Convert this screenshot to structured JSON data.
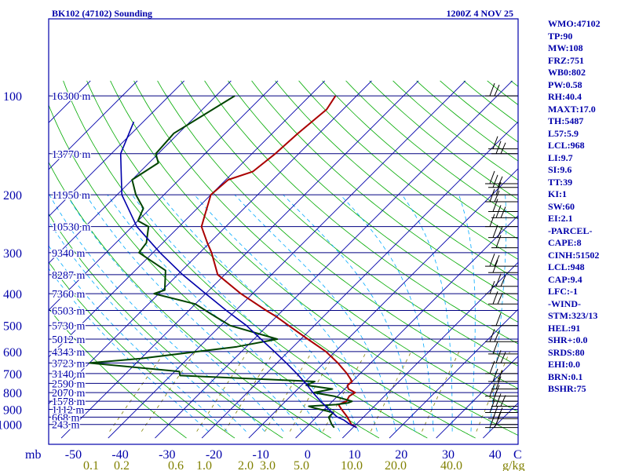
{
  "header": {
    "station": "BK102 (47102) Sounding",
    "time": "1200Z  4 NOV 25"
  },
  "indices": [
    "WMO:47102",
    "TP:90",
    "MW:108",
    "FRZ:751",
    "WB0:802",
    "PW:0.58",
    "RH:40.4",
    "MAXT:17.0",
    "TH:5487",
    "L57:5.9",
    "LCL:968",
    "LI:9.7",
    "SI:9.6",
    "TT:39",
    "KI:1",
    "SW:60",
    "EI:2.1",
    "-PARCEL-",
    "CAPE:8",
    "CINH:51502",
    "LCL:948",
    "CAP:9.4",
    "LFC:-1",
    "-WIND-",
    "STM:323/13",
    "HEL:91",
    "SHR+:0.0",
    "SRDS:80",
    "EHI:0.0",
    "BRN:0.1",
    "BSHR:75"
  ],
  "colors": {
    "frame": "#0000aa",
    "isobar": "#000080",
    "isotherm": "#0000aa",
    "dry_adiabat": "#00aa00",
    "mixing_ratio": "#808000",
    "moist_adiabat": "#00aaff",
    "temperature": "#aa0000",
    "dewpoint": "#004400",
    "parcel": "#0000aa",
    "wind": "#000000"
  },
  "chart_data": {
    "type": "line",
    "subtype": "skew-T log-p sounding",
    "pressure_axis": {
      "unit": "mb",
      "scale": "log",
      "ticks": [
        100,
        200,
        300,
        400,
        500,
        600,
        700,
        800,
        900,
        1000
      ]
    },
    "temperature_axis": {
      "ticks": [
        -50,
        -40,
        -30,
        -20,
        -10,
        0,
        10,
        20,
        30,
        40
      ],
      "label_end": "C"
    },
    "mixing_ratio_axis": {
      "ticks": [
        "0.1",
        "0.2",
        "0.6",
        "1.0",
        "2.0",
        "3.0",
        "5.0",
        "10.0",
        "20.0",
        "40.0"
      ],
      "unit": "g/kg"
    },
    "height_labels": [
      {
        "p": 100,
        "label": "16300 m"
      },
      {
        "p": 150,
        "label": "13770 m"
      },
      {
        "p": 200,
        "label": "11950 m"
      },
      {
        "p": 250,
        "label": "10530 m"
      },
      {
        "p": 300,
        "label": "9340 m"
      },
      {
        "p": 350,
        "label": "8287 m"
      },
      {
        "p": 400,
        "label": "7360 m"
      },
      {
        "p": 450,
        "label": "6503 m"
      },
      {
        "p": 500,
        "label": "5730 m"
      },
      {
        "p": 550,
        "label": "5012 m"
      },
      {
        "p": 600,
        "label": "4343 m"
      },
      {
        "p": 650,
        "label": "3723 m"
      },
      {
        "p": 700,
        "label": "3140 m"
      },
      {
        "p": 750,
        "label": "2590 m"
      },
      {
        "p": 800,
        "label": "2070 m"
      },
      {
        "p": 850,
        "label": "1578 m"
      },
      {
        "p": 900,
        "label": "1112 m"
      },
      {
        "p": 950,
        "label": "668 m"
      },
      {
        "p": 1000,
        "label": "243 m"
      }
    ],
    "series": [
      {
        "key": "temperature",
        "points": [
          [
            1022,
            10.8
          ],
          [
            1000,
            9.0
          ],
          [
            950,
            6.6
          ],
          [
            900,
            3.7
          ],
          [
            870,
            2.0
          ],
          [
            850,
            3.0
          ],
          [
            820,
            2.5
          ],
          [
            800,
            3.0
          ],
          [
            780,
            0.8
          ],
          [
            760,
            -0.2
          ],
          [
            740,
            0.0
          ],
          [
            700,
            -2.8
          ],
          [
            650,
            -7.0
          ],
          [
            600,
            -12.0
          ],
          [
            550,
            -18.5
          ],
          [
            500,
            -25.5
          ],
          [
            470,
            -30.0
          ],
          [
            450,
            -33.5
          ],
          [
            400,
            -42.5
          ],
          [
            350,
            -51.5
          ],
          [
            300,
            -57.5
          ],
          [
            280,
            -60.5
          ],
          [
            250,
            -65.2
          ],
          [
            230,
            -67.0
          ],
          [
            200,
            -70.0
          ],
          [
            180,
            -69.5
          ],
          [
            170,
            -66.0
          ],
          [
            150,
            -65.0
          ],
          [
            130,
            -64.5
          ],
          [
            110,
            -63.5
          ],
          [
            100,
            -64.5
          ]
        ]
      },
      {
        "key": "dewpoint",
        "points": [
          [
            1022,
            6.0
          ],
          [
            1000,
            4.8
          ],
          [
            950,
            2.6
          ],
          [
            920,
            2.6
          ],
          [
            890,
            -2.6
          ],
          [
            880,
            -4.0
          ],
          [
            870,
            1.5
          ],
          [
            860,
            3.7
          ],
          [
            850,
            4.2
          ],
          [
            820,
            -0.8
          ],
          [
            800,
            -5.8
          ],
          [
            780,
            -2.6
          ],
          [
            760,
            -9.0
          ],
          [
            740,
            -8.0
          ],
          [
            710,
            -38.0
          ],
          [
            690,
            -39.0
          ],
          [
            650,
            -60.0
          ],
          [
            630,
            -50.0
          ],
          [
            580,
            -32.0
          ],
          [
            550,
            -25.0
          ],
          [
            500,
            -38.0
          ],
          [
            470,
            -43.0
          ],
          [
            430,
            -50.0
          ],
          [
            400,
            -61.0
          ],
          [
            390,
            -59.5
          ],
          [
            340,
            -63.5
          ],
          [
            300,
            -73.0
          ],
          [
            280,
            -73.5
          ],
          [
            250,
            -76.5
          ],
          [
            240,
            -80.0
          ],
          [
            220,
            -81.5
          ],
          [
            200,
            -86.0
          ],
          [
            180,
            -90.0
          ],
          [
            160,
            -88.0
          ],
          [
            150,
            -90.5
          ],
          [
            130,
            -91.0
          ],
          [
            100,
            -86.0
          ]
        ]
      },
      {
        "key": "parcel",
        "points": [
          [
            1022,
            10.8
          ],
          [
            1000,
            8.7
          ],
          [
            970,
            6.5
          ],
          [
            948,
            4.3
          ],
          [
            900,
            1.0
          ],
          [
            850,
            -2.5
          ],
          [
            800,
            -6.0
          ],
          [
            750,
            -9.5
          ],
          [
            700,
            -13.5
          ],
          [
            650,
            -18.0
          ],
          [
            600,
            -23.0
          ],
          [
            550,
            -28.5
          ],
          [
            500,
            -34.5
          ],
          [
            450,
            -42.0
          ],
          [
            400,
            -50.0
          ],
          [
            350,
            -59.0
          ],
          [
            300,
            -68.5
          ],
          [
            250,
            -79.0
          ],
          [
            200,
            -89.0
          ],
          [
            150,
            -98.0
          ],
          [
            120,
            -102.0
          ]
        ]
      }
    ],
    "wind_barbs_pressure": [
      100,
      145,
      150,
      185,
      190,
      200,
      210,
      225,
      235,
      250,
      270,
      290,
      330,
      345,
      380,
      400,
      430,
      500,
      560,
      610,
      650,
      700,
      740,
      780,
      820,
      850,
      880,
      920,
      960,
      1000,
      1022
    ]
  }
}
